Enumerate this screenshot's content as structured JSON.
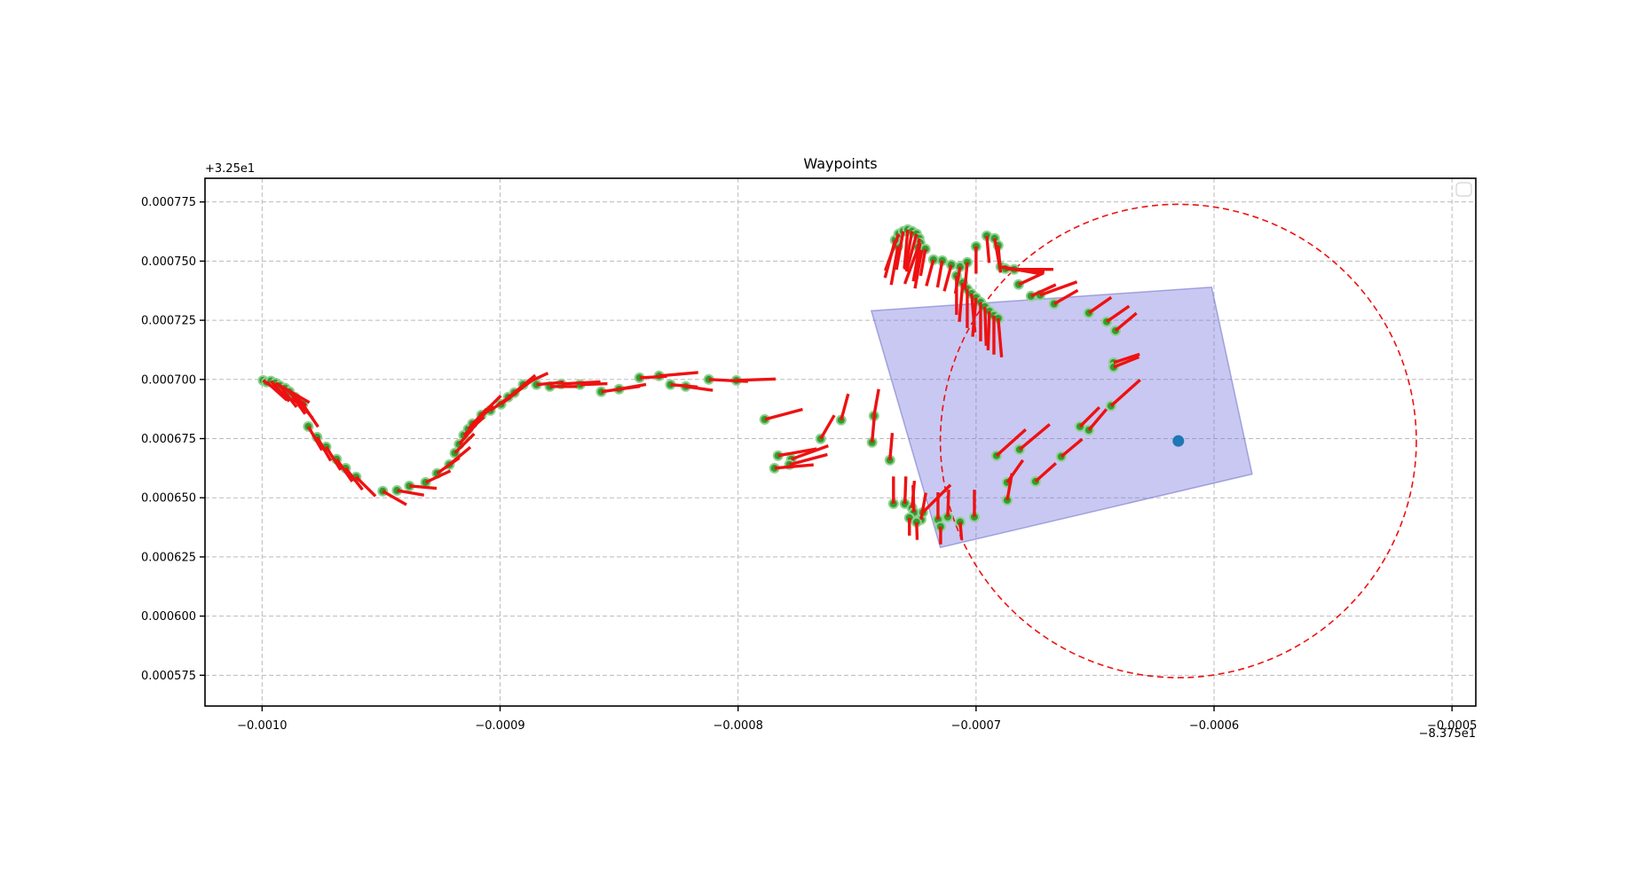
{
  "chart_data": {
    "type": "scatter",
    "title": "Waypoints",
    "xlabel": "",
    "ylabel": "",
    "x_offset_label": "−8.375e1",
    "y_offset_label": "+3.25e1",
    "xlim": [
      -0.001024,
      -0.00049
    ],
    "ylim": [
      0.000562,
      0.000785
    ],
    "grid": true,
    "x_ticks": [
      {
        "value": -0.001,
        "label": "−0.0010"
      },
      {
        "value": -0.0009,
        "label": "−0.0009"
      },
      {
        "value": -0.0008,
        "label": "−0.0008"
      },
      {
        "value": -0.0007,
        "label": "−0.0007"
      },
      {
        "value": -0.0006,
        "label": "−0.0006"
      },
      {
        "value": -0.0005,
        "label": "−0.0005"
      }
    ],
    "y_ticks": [
      {
        "value": 0.000775,
        "label": "0.000775"
      },
      {
        "value": 0.00075,
        "label": "0.000750"
      },
      {
        "value": 0.000725,
        "label": "0.000725"
      },
      {
        "value": 0.0007,
        "label": "0.000700"
      },
      {
        "value": 0.000675,
        "label": "0.000675"
      },
      {
        "value": 0.00065,
        "label": "0.000650"
      },
      {
        "value": 0.000625,
        "label": "0.000625"
      },
      {
        "value": 0.0006,
        "label": "0.000600"
      },
      {
        "value": 0.000575,
        "label": "0.000575"
      }
    ],
    "legend": {
      "visible": true,
      "entries": [],
      "position": "upper right"
    },
    "colors": {
      "waypoint_fill": "#2f9e2f",
      "waypoint_edge": "#8fd08f",
      "heading_segment": "#ee1111",
      "polygon_fill": "rgba(110,110,220,0.38)",
      "polygon_edge": "rgba(110,110,200,0.55)",
      "range_circle": "#ee1111",
      "current_position": "#1f77b4",
      "grid": "#bbbbbb",
      "axes": "#000000"
    },
    "quiver_length_units": {
      "s": 7.5e-06,
      "m": 1.15e-05,
      "l": 1.65e-05
    },
    "shapes": {
      "boundary_polygon": {
        "corners": [
          [
            -0.000744,
            0.000729
          ],
          [
            -0.000601,
            0.000739
          ],
          [
            -0.000584,
            0.00066
          ],
          [
            -0.000715,
            0.000629
          ]
        ]
      },
      "range_circle": {
        "center": [
          -0.000615,
          0.000674
        ],
        "radius": 0.0001
      }
    },
    "current_position": [
      -0.000615,
      0.000674
    ],
    "waypoints_note": "each waypoint = [x, y, heading_deg, segment_length_class]",
    "waypoints": [
      [
        -0.0009996,
        0.0006996,
        -35,
        "l"
      ],
      [
        -0.0009981,
        0.0006989,
        -42,
        "m"
      ],
      [
        -0.0009963,
        0.0006993,
        -48,
        "m"
      ],
      [
        -0.0009944,
        0.0006985,
        -30,
        "l"
      ],
      [
        -0.0009926,
        0.0006974,
        -52,
        "m"
      ],
      [
        -0.0009903,
        0.0006963,
        -40,
        "m"
      ],
      [
        -0.0009885,
        0.0006948,
        -55,
        "m"
      ],
      [
        -0.0009862,
        0.0006925,
        -50,
        "m"
      ],
      [
        -0.0009829,
        0.0006895,
        -56,
        "m"
      ],
      [
        -0.0009806,
        0.0006801,
        -60,
        "m"
      ],
      [
        -0.0009769,
        0.0006756,
        -60,
        "m"
      ],
      [
        -0.0009731,
        0.0006715,
        -58,
        "m"
      ],
      [
        -0.0009687,
        0.0006663,
        -55,
        "m"
      ],
      [
        -0.0009649,
        0.0006625,
        -52,
        "m"
      ],
      [
        -0.0009605,
        0.0006588,
        -45,
        "m"
      ],
      [
        -0.0009493,
        0.0006528,
        -30,
        "m"
      ],
      [
        -0.0009433,
        0.0006531,
        -10,
        "m"
      ],
      [
        -0.0009381,
        0.000655,
        -5,
        "m"
      ],
      [
        -0.0009313,
        0.0006565,
        25,
        "m"
      ],
      [
        -0.0009265,
        0.0006603,
        35,
        "m"
      ],
      [
        -0.0009213,
        0.000664,
        40,
        "m"
      ],
      [
        -0.000919,
        0.0006689,
        45,
        "m"
      ],
      [
        -0.0009172,
        0.0006726,
        50,
        "m"
      ],
      [
        -0.0009153,
        0.0006764,
        42,
        "m"
      ],
      [
        -0.0009134,
        0.000679,
        48,
        "m"
      ],
      [
        -0.0009116,
        0.0006813,
        40,
        "m"
      ],
      [
        -0.0009078,
        0.000685,
        45,
        "m"
      ],
      [
        -0.0009041,
        0.0006869,
        35,
        "m"
      ],
      [
        -0.0008996,
        0.0006895,
        38,
        "m"
      ],
      [
        -0.0008966,
        0.0006925,
        35,
        "m"
      ],
      [
        -0.000894,
        0.0006944,
        40,
        "m"
      ],
      [
        -0.0008903,
        0.0006978,
        25,
        "m"
      ],
      [
        -0.0008847,
        0.0006978,
        5,
        "m"
      ],
      [
        -0.0008791,
        0.000697,
        0,
        "m"
      ],
      [
        -0.0008743,
        0.0006981,
        3,
        "l"
      ],
      [
        -0.0008664,
        0.0006978,
        2,
        "m"
      ],
      [
        -0.0008575,
        0.0006948,
        8,
        "l"
      ],
      [
        -0.00085,
        0.0006959,
        10,
        "m"
      ],
      [
        -0.0008414,
        0.0007007,
        3,
        "m"
      ],
      [
        -0.0008332,
        0.0007015,
        5,
        "l"
      ],
      [
        -0.0008284,
        0.0006978,
        -5,
        "m"
      ],
      [
        -0.000822,
        0.000697,
        -8,
        "m"
      ],
      [
        -0.0008123,
        0.0007,
        -3,
        "l"
      ],
      [
        -0.0008007,
        0.0006996,
        2,
        "l"
      ],
      [
        -0.0007888,
        0.0006831,
        15,
        "l"
      ],
      [
        -0.0007832,
        0.0006678,
        10,
        "l"
      ],
      [
        -0.0007776,
        0.0006663,
        20,
        "l"
      ],
      [
        -0.0007847,
        0.0006625,
        5,
        "l"
      ],
      [
        -0.0007784,
        0.000664,
        15,
        "l"
      ],
      [
        -0.0007653,
        0.0006749,
        60,
        "m"
      ],
      [
        -0.0007567,
        0.0006828,
        75,
        "m"
      ],
      [
        -0.0007429,
        0.0006846,
        80,
        "m"
      ],
      [
        -0.0007437,
        0.0006734,
        85,
        "m"
      ],
      [
        -0.0007362,
        0.0006659,
        85,
        "m"
      ],
      [
        -0.0007347,
        0.0006475,
        90,
        "m"
      ],
      [
        -0.0007299,
        0.0006475,
        88,
        "m"
      ],
      [
        -0.0007269,
        0.0006457,
        85,
        "m"
      ],
      [
        -0.0007261,
        0.0006438,
        92,
        "m"
      ],
      [
        -0.0007231,
        0.0006408,
        80,
        "m"
      ],
      [
        -0.0007224,
        0.0006438,
        45,
        "l"
      ],
      [
        -0.000728,
        0.0006415,
        -90,
        "s"
      ],
      [
        -0.000725,
        0.0006397,
        -88,
        "s"
      ],
      [
        -0.000716,
        0.0006408,
        90,
        "m"
      ],
      [
        -0.0007149,
        0.0006378,
        -90,
        "s"
      ],
      [
        -0.0007119,
        0.0006419,
        88,
        "m"
      ],
      [
        -0.0007067,
        0.0006397,
        -85,
        "s"
      ],
      [
        -0.0007007,
        0.0006419,
        90,
        "m"
      ],
      [
        -0.0007328,
        0.0007562,
        -100,
        "l"
      ],
      [
        -0.000734,
        0.0007589,
        -105,
        "l"
      ],
      [
        -0.0007325,
        0.0007615,
        -110,
        "l"
      ],
      [
        -0.0007306,
        0.0007626,
        -100,
        "l"
      ],
      [
        -0.0007287,
        0.0007633,
        -95,
        "l"
      ],
      [
        -0.0007269,
        0.0007626,
        -100,
        "l"
      ],
      [
        -0.000725,
        0.0007615,
        -105,
        "l"
      ],
      [
        -0.0007239,
        0.0007596,
        -95,
        "l"
      ],
      [
        -0.0007235,
        0.0007577,
        -100,
        "l"
      ],
      [
        -0.0007243,
        0.0007559,
        -110,
        "l"
      ],
      [
        -0.0007228,
        0.0007547,
        -100,
        "l"
      ],
      [
        -0.0007213,
        0.0007551,
        -100,
        "m"
      ],
      [
        -0.0007179,
        0.0007506,
        -105,
        "m"
      ],
      [
        -0.0007142,
        0.0007502,
        -100,
        "m"
      ],
      [
        -0.0007104,
        0.0007484,
        -105,
        "m"
      ],
      [
        -0.0007067,
        0.0007476,
        -100,
        "m"
      ],
      [
        -0.0007037,
        0.0007495,
        -95,
        "m"
      ],
      [
        -0.0007,
        0.0007562,
        -90,
        "m"
      ],
      [
        -0.0006955,
        0.0007607,
        -85,
        "m"
      ],
      [
        -0.0006922,
        0.0007596,
        -80,
        "m"
      ],
      [
        -0.0006907,
        0.0007566,
        -85,
        "m"
      ],
      [
        -0.0007082,
        0.0007438,
        -90,
        "l"
      ],
      [
        -0.0007056,
        0.0007408,
        -95,
        "l"
      ],
      [
        -0.0007037,
        0.0007382,
        -90,
        "l"
      ],
      [
        -0.0007019,
        0.0007363,
        -85,
        "l"
      ],
      [
        -0.0007,
        0.0007345,
        -95,
        "l"
      ],
      [
        -0.0006981,
        0.0007326,
        -90,
        "l"
      ],
      [
        -0.0006963,
        0.0007307,
        -88,
        "l"
      ],
      [
        -0.0006944,
        0.0007288,
        -92,
        "l"
      ],
      [
        -0.0006925,
        0.000727,
        -90,
        "l"
      ],
      [
        -0.0006907,
        0.0007258,
        -85,
        "l"
      ],
      [
        -0.0006896,
        0.0007476,
        -10,
        "l"
      ],
      [
        -0.0006877,
        0.0007468,
        -5,
        "l"
      ],
      [
        -0.000684,
        0.0007465,
        0,
        "l"
      ],
      [
        -0.0006821,
        0.0007401,
        25,
        "m"
      ],
      [
        -0.0006769,
        0.0007352,
        25,
        "m"
      ],
      [
        -0.0006731,
        0.0007356,
        20,
        "l"
      ],
      [
        -0.0006672,
        0.0007319,
        30,
        "m"
      ],
      [
        -0.0006526,
        0.0007281,
        35,
        "m"
      ],
      [
        -0.0006451,
        0.0007244,
        35,
        "m"
      ],
      [
        -0.0006414,
        0.0007206,
        40,
        "m"
      ],
      [
        -0.0006422,
        0.0007071,
        18,
        "m"
      ],
      [
        -0.0006422,
        0.0007052,
        22,
        "m"
      ],
      [
        -0.0006433,
        0.0006888,
        42,
        "l"
      ],
      [
        -0.0006526,
        0.0006786,
        50,
        "m"
      ],
      [
        -0.0006563,
        0.0006801,
        45,
        "m"
      ],
      [
        -0.0006642,
        0.0006674,
        40,
        "m"
      ],
      [
        -0.000675,
        0.0006569,
        42,
        "m"
      ],
      [
        -0.0006817,
        0.0006704,
        40,
        "l"
      ],
      [
        -0.0006869,
        0.0006565,
        55,
        "m"
      ],
      [
        -0.0006869,
        0.000649,
        80,
        "m"
      ],
      [
        -0.0006914,
        0.0006678,
        42,
        "l"
      ]
    ]
  }
}
